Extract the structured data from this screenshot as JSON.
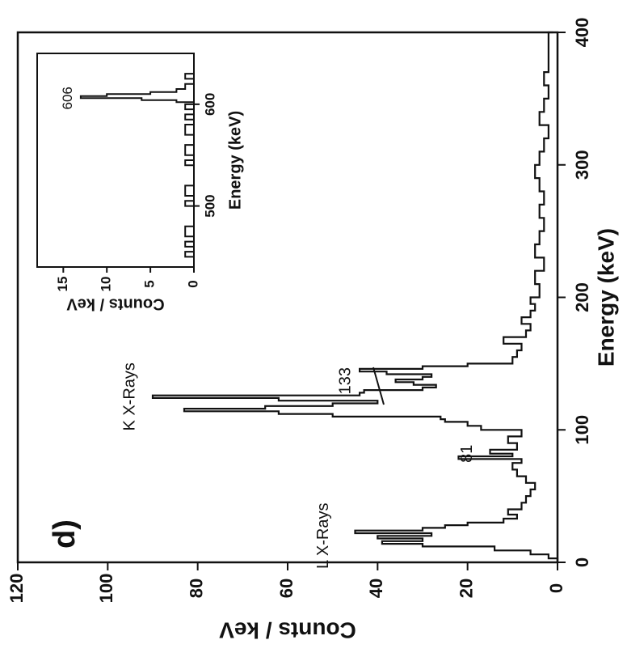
{
  "chart_data": [
    {
      "type": "line",
      "panel_label": "d)",
      "xlabel": "Energy (keV)",
      "ylabel": "Counts / keV",
      "xlim": [
        0,
        400
      ],
      "ylim": [
        0,
        120
      ],
      "x_ticks": [
        "0",
        "100",
        "200",
        "300",
        "400"
      ],
      "y_ticks": [
        "0",
        "20",
        "40",
        "60",
        "80",
        "100",
        "120"
      ],
      "annotations": [
        {
          "text": "L X-Rays",
          "x": 20,
          "y": 52
        },
        {
          "text": "K X-Rays",
          "x": 125,
          "y": 95
        },
        {
          "text": "81",
          "x": 82,
          "y": 20
        },
        {
          "text": "133",
          "x": 137,
          "y": 47
        }
      ],
      "series": [
        {
          "x": [
            0,
            3,
            6,
            9,
            12,
            14,
            16,
            18,
            20,
            22,
            24,
            26,
            28,
            30,
            33,
            36,
            40,
            45,
            50,
            55,
            60,
            65,
            70,
            75,
            78,
            80,
            82,
            85,
            90,
            95,
            100,
            103,
            106,
            108,
            110,
            112,
            114,
            116,
            118,
            120,
            122,
            124,
            126,
            128,
            130,
            132,
            134,
            136,
            138,
            140,
            142,
            144,
            146,
            148,
            150,
            155,
            160,
            165,
            170,
            175,
            180,
            185,
            190,
            195,
            200,
            210,
            220,
            230,
            240,
            250,
            260,
            270,
            280,
            290,
            300,
            310,
            320,
            330,
            340,
            350,
            360,
            370,
            380,
            390,
            400
          ],
          "y": [
            0,
            2,
            6,
            14,
            30,
            39,
            30,
            40,
            28,
            45,
            30,
            25,
            20,
            12,
            9,
            11,
            8,
            7,
            6,
            5,
            7,
            9,
            10,
            8,
            22,
            10,
            15,
            9,
            11,
            8,
            17,
            20,
            25,
            26,
            50,
            62,
            83,
            65,
            50,
            40,
            62,
            90,
            44,
            43,
            30,
            27,
            32,
            36,
            30,
            28,
            38,
            44,
            30,
            20,
            10,
            9,
            8,
            12,
            7,
            6,
            8,
            6,
            5,
            6,
            4,
            5,
            3,
            5,
            4,
            3,
            4,
            3,
            4,
            5,
            4,
            3,
            2,
            4,
            3,
            2,
            3,
            2,
            2,
            2,
            1
          ]
        }
      ]
    },
    {
      "type": "line",
      "xlabel": "Energy (keV)",
      "ylabel": "Counts / keV",
      "xlim": [
        440,
        650
      ],
      "ylim": [
        0,
        18
      ],
      "x_ticks": [
        "500",
        "600"
      ],
      "y_ticks": [
        "0",
        "5",
        "10",
        "15"
      ],
      "annotations": [
        {
          "text": "606",
          "x": 606,
          "y": 13.5
        }
      ],
      "series": [
        {
          "x": [
            440,
            450,
            455,
            460,
            465,
            470,
            480,
            490,
            500,
            505,
            510,
            520,
            530,
            540,
            545,
            550,
            560,
            570,
            580,
            585,
            590,
            595,
            600,
            602,
            604,
            606,
            608,
            610,
            612,
            615,
            620,
            625,
            630,
            640,
            650
          ],
          "y": [
            0,
            1,
            0,
            1,
            0,
            1,
            0,
            0,
            1,
            0,
            1,
            0,
            0,
            1,
            0,
            1,
            0,
            1,
            0,
            1,
            0,
            1,
            0,
            2,
            6,
            13,
            10,
            5,
            2,
            1,
            0,
            1,
            0,
            0,
            0
          ]
        }
      ]
    }
  ]
}
